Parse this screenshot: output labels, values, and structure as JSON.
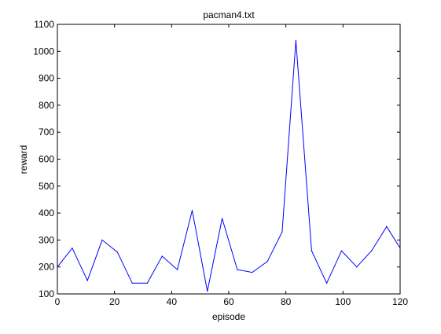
{
  "chart_data": {
    "type": "line",
    "title": "pacman4.txt",
    "xlabel": "episode",
    "ylabel": "reward",
    "xlim": [
      0,
      120
    ],
    "ylim": [
      100,
      1100
    ],
    "xticks": [
      "0",
      "20",
      "40",
      "60",
      "80",
      "100",
      "120"
    ],
    "yticks": [
      "100",
      "200",
      "300",
      "400",
      "500",
      "600",
      "700",
      "800",
      "900",
      "1000",
      "1100"
    ],
    "grid": false,
    "series": [
      {
        "color": "#0000ff",
        "x": [
          0,
          5.2,
          10.5,
          15.7,
          21,
          26.2,
          31.5,
          36.7,
          42,
          47.2,
          52.5,
          57.7,
          63,
          68.2,
          73.5,
          78.7,
          83.5,
          89,
          94.3,
          99.5,
          104.8,
          110,
          115.3,
          120
        ],
        "y": [
          200,
          270,
          150,
          300,
          255,
          140,
          140,
          240,
          190,
          410,
          110,
          380,
          190,
          180,
          220,
          330,
          1040,
          260,
          140,
          260,
          200,
          260,
          350,
          270
        ]
      }
    ]
  }
}
